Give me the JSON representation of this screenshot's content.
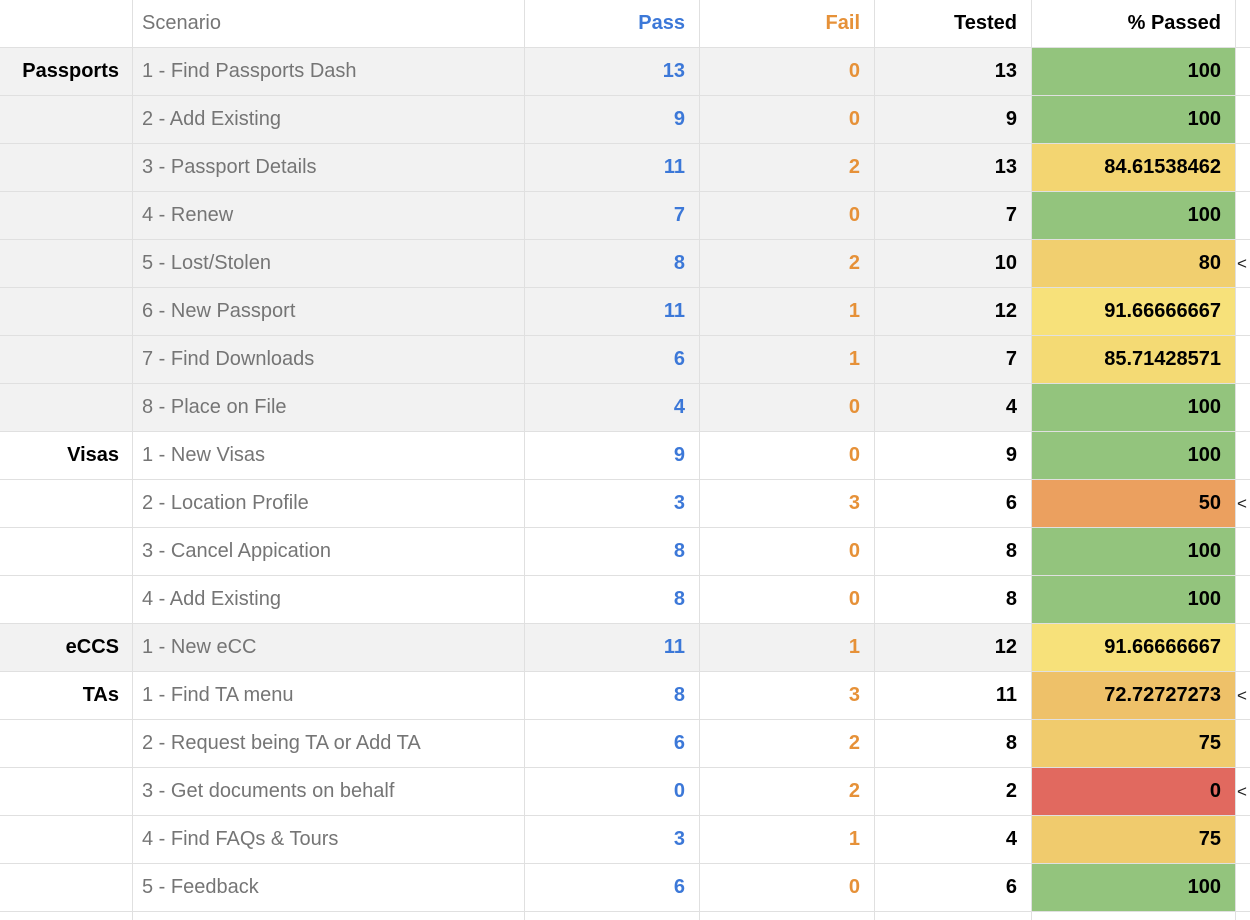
{
  "colors": {
    "grid": "#e0e0e0",
    "band-gray": "#f2f2f2",
    "pass-color": "#3c78d8",
    "fail-color": "#e69138",
    "scenario-color": "#757575",
    "marker-color": "#222222",
    "pct-green": "#93c47d",
    "pct-red": "#e1695f"
  },
  "table": {
    "headers": {
      "group": "",
      "scenario": "Scenario",
      "pass": "Pass",
      "fail": "Fail",
      "tested": "Tested",
      "pct": "% Passed"
    },
    "rows": [
      {
        "group": "Passports",
        "scenario": "1 - Find Passports Dash",
        "pass": "13",
        "fail": "0",
        "tested": "13",
        "pct": "100",
        "pct_color": "#93c47d",
        "band": "gray",
        "marker": ""
      },
      {
        "group": "",
        "scenario": "2 - Add Existing",
        "pass": "9",
        "fail": "0",
        "tested": "9",
        "pct": "100",
        "pct_color": "#93c47d",
        "band": "gray",
        "marker": ""
      },
      {
        "group": "",
        "scenario": "3 - Passport Details",
        "pass": "11",
        "fail": "2",
        "tested": "13",
        "pct": "84.61538462",
        "pct_color": "#f3d571",
        "band": "gray",
        "marker": ""
      },
      {
        "group": "",
        "scenario": "4 - Renew",
        "pass": "7",
        "fail": "0",
        "tested": "7",
        "pct": "100",
        "pct_color": "#93c47d",
        "band": "gray",
        "marker": ""
      },
      {
        "group": "",
        "scenario": "5 - Lost/Stolen",
        "pass": "8",
        "fail": "2",
        "tested": "10",
        "pct": "80",
        "pct_color": "#f1cf6f",
        "band": "gray",
        "marker": "<"
      },
      {
        "group": "",
        "scenario": "6 - New Passport",
        "pass": "11",
        "fail": "1",
        "tested": "12",
        "pct": "91.66666667",
        "pct_color": "#f7e17a",
        "band": "gray",
        "marker": ""
      },
      {
        "group": "",
        "scenario": "7 - Find Downloads",
        "pass": "6",
        "fail": "1",
        "tested": "7",
        "pct": "85.71428571",
        "pct_color": "#f4da74",
        "band": "gray",
        "marker": ""
      },
      {
        "group": "",
        "scenario": "8 - Place on File",
        "pass": "4",
        "fail": "0",
        "tested": "4",
        "pct": "100",
        "pct_color": "#93c47d",
        "band": "gray",
        "marker": ""
      },
      {
        "group": "Visas",
        "scenario": "1 - New Visas",
        "pass": "9",
        "fail": "0",
        "tested": "9",
        "pct": "100",
        "pct_color": "#93c47d",
        "band": "white",
        "marker": ""
      },
      {
        "group": "",
        "scenario": "2 - Location Profile",
        "pass": "3",
        "fail": "3",
        "tested": "6",
        "pct": "50",
        "pct_color": "#eba05f",
        "band": "white",
        "marker": "<"
      },
      {
        "group": "",
        "scenario": "3 - Cancel Appication",
        "pass": "8",
        "fail": "0",
        "tested": "8",
        "pct": "100",
        "pct_color": "#93c47d",
        "band": "white",
        "marker": ""
      },
      {
        "group": "",
        "scenario": "4 - Add Existing",
        "pass": "8",
        "fail": "0",
        "tested": "8",
        "pct": "100",
        "pct_color": "#93c47d",
        "band": "white",
        "marker": ""
      },
      {
        "group": "eCCS",
        "scenario": "1 - New eCC",
        "pass": "11",
        "fail": "1",
        "tested": "12",
        "pct": "91.66666667",
        "pct_color": "#f7e17a",
        "band": "gray",
        "marker": ""
      },
      {
        "group": "TAs",
        "scenario": "1 - Find TA menu",
        "pass": "8",
        "fail": "3",
        "tested": "11",
        "pct": "72.72727273",
        "pct_color": "#eec169",
        "band": "white",
        "marker": "<"
      },
      {
        "group": "",
        "scenario": "2 - Request being TA or Add TA",
        "pass": "6",
        "fail": "2",
        "tested": "8",
        "pct": "75",
        "pct_color": "#f0cb6d",
        "band": "white",
        "marker": ""
      },
      {
        "group": "",
        "scenario": "3 - Get documents on behalf",
        "pass": "0",
        "fail": "2",
        "tested": "2",
        "pct": "0",
        "pct_color": "#e1695f",
        "band": "white",
        "marker": "<"
      },
      {
        "group": "",
        "scenario": "4 - Find FAQs & Tours",
        "pass": "3",
        "fail": "1",
        "tested": "4",
        "pct": "75",
        "pct_color": "#f0cb6d",
        "band": "white",
        "marker": ""
      },
      {
        "group": "",
        "scenario": "5 - Feedback",
        "pass": "6",
        "fail": "0",
        "tested": "6",
        "pct": "100",
        "pct_color": "#93c47d",
        "band": "white",
        "marker": ""
      }
    ]
  }
}
